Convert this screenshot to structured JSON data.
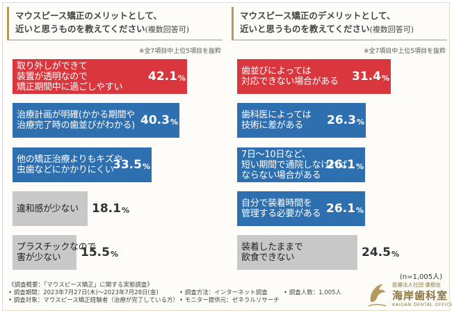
{
  "colors": {
    "merit_top": "#d9363e",
    "blue": "#2e6fb0",
    "gray": "#c8c8c8",
    "gold": "#b59a5a"
  },
  "left_panel": {
    "question_line1": "マウスピース矯正のメリットとして、",
    "question_line2": "近いと思うものを教えてください",
    "question_sub": "(複数回答可)",
    "note": "※全7項目中上位5項目を抜粋"
  },
  "right_panel": {
    "question_line1": "マウスピース矯正のデメリットとして、",
    "question_line2": "近いと思うものを教えてください",
    "question_sub": "(複数回答可)",
    "note": "※全7項目中上位5項目を抜粋"
  },
  "chart_data": [
    {
      "type": "bar",
      "orientation": "horizontal",
      "title": "マウスピース矯正のメリットとして、近いと思うものを教えてください(複数回答可)",
      "unit": "%",
      "xlim": [
        0,
        45
      ],
      "categories": [
        "取り外しができて\n装置が透明なので\n矯正期間中に過ごしやすい",
        "治療計画が明確(かかる期間や\n治療完了時の歯並びがわかる)",
        "他の矯正治療よりもキズや\n虫歯などにかかりにくい",
        "違和感が少ない",
        "プラスチックなので\n害が少ない"
      ],
      "values": [
        42.1,
        40.3,
        33.5,
        18.1,
        15.5
      ],
      "value_labels": [
        "42.1",
        "40.3",
        "33.5",
        "18.1",
        "15.5"
      ],
      "bar_colors": [
        "red",
        "blue",
        "blue",
        "gray",
        "gray"
      ]
    },
    {
      "type": "bar",
      "orientation": "horizontal",
      "title": "マウスピース矯正のデメリットとして、近いと思うものを教えてください(複数回答可)",
      "unit": "%",
      "xlim": [
        0,
        38
      ],
      "categories": [
        "歯並びによっては\n対応できない場合がある",
        "歯科医によっては\n技術に差がある",
        "7日〜10日など、\n短い期間で通院しなければ\nならない場合がある",
        "自分で装着時間を\n管理する必要がある",
        "装着したままで\n飲食できない"
      ],
      "values": [
        31.4,
        26.3,
        26.1,
        26.1,
        24.5
      ],
      "value_labels": [
        "31.4",
        "26.3",
        "26.1",
        "26.1",
        "24.5"
      ],
      "bar_colors": [
        "red",
        "blue",
        "blue",
        "blue",
        "gray"
      ]
    }
  ],
  "n_count": "(n=1,005人)",
  "survey": {
    "overview": "《調査概要：「マウスピース矯正」に関する実態調査》",
    "period": "• 調査期間：2023年7月27日(木)〜2023年7月28日(金)",
    "method": "• 調査方法：インターネット調査",
    "people": "• 調査人数：1,005人",
    "target": "• 調査対象：マウスピース矯正経験者（治療が完了している方）",
    "provider": "• モニター提供元：ゼネラルリサーチ"
  },
  "logo": {
    "sub": "医療法人社団 康樹会",
    "main": "海岸歯科室",
    "en": "KAIGAN DENTAL OFFICE"
  }
}
